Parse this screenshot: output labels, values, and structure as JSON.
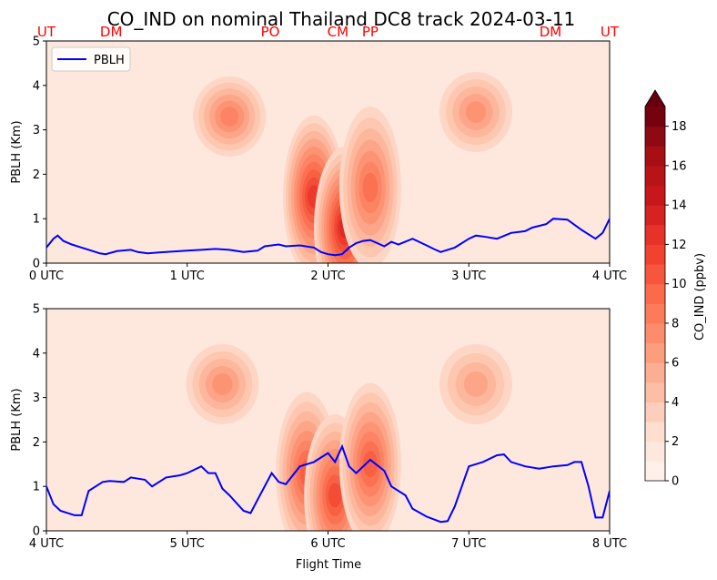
{
  "title": "CO_IND on nominal Thailand DC8 track 2024-03-11",
  "chart_data": [
    {
      "type": "heatmap",
      "title": "",
      "ylabel": "PBLH (Km)",
      "xlabel": "",
      "ylim": [
        0,
        5
      ],
      "yticks": [
        "0",
        "1",
        "2",
        "3",
        "4",
        "5"
      ],
      "xticks": [
        "0 UTC",
        "1 UTC",
        "2 UTC",
        "3 UTC",
        "4 UTC"
      ],
      "xrange_hours": [
        0,
        4
      ],
      "station_labels": [
        {
          "label": "UT",
          "x": 0.0
        },
        {
          "label": "DM",
          "x": 0.46
        },
        {
          "label": "PO",
          "x": 1.59
        },
        {
          "label": "CM",
          "x": 2.07
        },
        {
          "label": "PP",
          "x": 2.3
        },
        {
          "label": "DM",
          "x": 3.58
        },
        {
          "label": "UT",
          "x": 4.0
        }
      ],
      "legend": {
        "entries": [
          "PBLH"
        ],
        "placement": "top-left"
      },
      "series": [
        {
          "name": "PBLH",
          "color": "#0000ff",
          "x": [
            0.0,
            0.05,
            0.08,
            0.12,
            0.18,
            0.25,
            0.32,
            0.38,
            0.42,
            0.5,
            0.6,
            0.65,
            0.72,
            0.8,
            0.9,
            1.0,
            1.1,
            1.2,
            1.3,
            1.4,
            1.5,
            1.55,
            1.65,
            1.7,
            1.8,
            1.9,
            1.95,
            2.0,
            2.05,
            2.1,
            2.15,
            2.2,
            2.25,
            2.3,
            2.4,
            2.45,
            2.5,
            2.6,
            2.7,
            2.75,
            2.8,
            2.9,
            3.0,
            3.05,
            3.1,
            3.2,
            3.3,
            3.4,
            3.45,
            3.55,
            3.6,
            3.7,
            3.8,
            3.9,
            3.95,
            4.0
          ],
          "values": [
            0.35,
            0.55,
            0.62,
            0.5,
            0.42,
            0.35,
            0.28,
            0.22,
            0.2,
            0.27,
            0.3,
            0.25,
            0.22,
            0.24,
            0.26,
            0.28,
            0.3,
            0.32,
            0.3,
            0.25,
            0.28,
            0.38,
            0.42,
            0.38,
            0.4,
            0.35,
            0.25,
            0.2,
            0.18,
            0.2,
            0.35,
            0.45,
            0.5,
            0.52,
            0.38,
            0.48,
            0.42,
            0.55,
            0.4,
            0.32,
            0.25,
            0.35,
            0.55,
            0.62,
            0.6,
            0.55,
            0.68,
            0.72,
            0.8,
            0.88,
            1.0,
            0.98,
            0.75,
            0.55,
            0.68,
            1.0
          ]
        }
      ],
      "contour_blobs": [
        {
          "x": 1.3,
          "y": 3.3,
          "peak": 8
        },
        {
          "x": 1.9,
          "y": 1.5,
          "peak": 12
        },
        {
          "x": 2.12,
          "y": 0.8,
          "peak": 13
        },
        {
          "x": 2.3,
          "y": 1.7,
          "peak": 9
        },
        {
          "x": 3.05,
          "y": 3.4,
          "peak": 7
        }
      ]
    },
    {
      "type": "heatmap",
      "title": "",
      "ylabel": "PBLH (Km)",
      "xlabel": "Flight Time",
      "ylim": [
        0,
        5
      ],
      "yticks": [
        "0",
        "1",
        "2",
        "3",
        "4",
        "5"
      ],
      "xticks": [
        "4 UTC",
        "5 UTC",
        "6 UTC",
        "7 UTC",
        "8 UTC"
      ],
      "xrange_hours": [
        4,
        8
      ],
      "series": [
        {
          "name": "PBLH",
          "color": "#0000ff",
          "x": [
            4.0,
            4.05,
            4.1,
            4.2,
            4.25,
            4.3,
            4.4,
            4.45,
            4.55,
            4.6,
            4.7,
            4.75,
            4.85,
            4.95,
            5.0,
            5.1,
            5.15,
            5.2,
            5.25,
            5.3,
            5.4,
            5.45,
            5.5,
            5.6,
            5.65,
            5.7,
            5.8,
            5.9,
            6.0,
            6.05,
            6.1,
            6.15,
            6.2,
            6.3,
            6.4,
            6.45,
            6.55,
            6.6,
            6.7,
            6.8,
            6.85,
            6.9,
            7.0,
            7.05,
            7.1,
            7.2,
            7.25,
            7.3,
            7.4,
            7.5,
            7.6,
            7.7,
            7.75,
            7.8,
            7.85,
            7.9,
            7.95,
            8.0
          ],
          "values": [
            1.0,
            0.6,
            0.45,
            0.35,
            0.35,
            0.9,
            1.1,
            1.12,
            1.1,
            1.2,
            1.15,
            1.0,
            1.2,
            1.25,
            1.3,
            1.45,
            1.3,
            1.3,
            0.95,
            0.8,
            0.45,
            0.4,
            0.7,
            1.3,
            1.1,
            1.05,
            1.45,
            1.55,
            1.75,
            1.55,
            1.9,
            1.45,
            1.3,
            1.6,
            1.35,
            1.0,
            0.8,
            0.5,
            0.32,
            0.2,
            0.22,
            0.55,
            1.45,
            1.5,
            1.55,
            1.7,
            1.72,
            1.55,
            1.45,
            1.4,
            1.45,
            1.48,
            1.55,
            1.55,
            1.0,
            0.3,
            0.3,
            0.9
          ]
        }
      ],
      "contour_blobs": [
        {
          "x": 5.25,
          "y": 3.3,
          "peak": 7
        },
        {
          "x": 5.85,
          "y": 1.3,
          "peak": 10
        },
        {
          "x": 6.05,
          "y": 0.8,
          "peak": 11
        },
        {
          "x": 6.3,
          "y": 1.5,
          "peak": 10
        },
        {
          "x": 7.05,
          "y": 3.3,
          "peak": 6
        }
      ]
    }
  ],
  "colorbar": {
    "label": "CO_IND (ppbv)",
    "range": [
      0,
      19
    ],
    "ticks": [
      "0",
      "2",
      "4",
      "6",
      "8",
      "10",
      "12",
      "14",
      "16",
      "18"
    ],
    "levels": 19,
    "extend": "max"
  },
  "colors": {
    "station_label": "#ff0000",
    "pblh_line": "#0000ff",
    "colormap": "Reds"
  }
}
